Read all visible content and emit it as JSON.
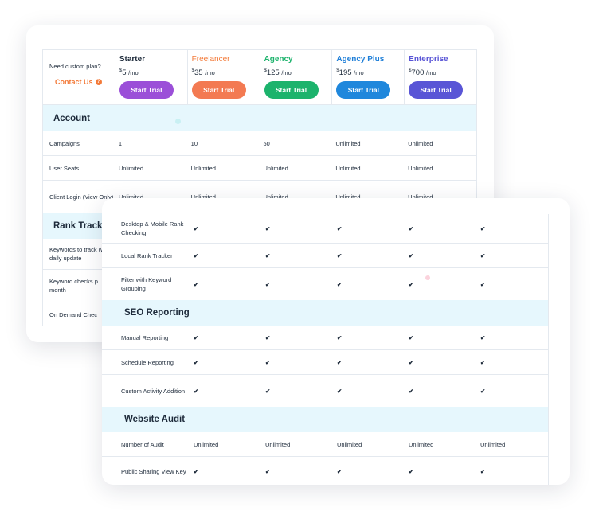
{
  "header": {
    "need_custom": "Need custom plan?",
    "contact": "Contact Us",
    "plans": [
      {
        "name": "Starter",
        "currency": "$",
        "price": "5",
        "period": "/mo",
        "button": "Start Trial",
        "name_color": "#1d2a3a",
        "button_color": "#9b4fd8"
      },
      {
        "name": "Freelancer",
        "currency": "$",
        "price": "35",
        "period": "/mo",
        "button": "Start Trial",
        "name_color": "#f37a39",
        "button_color": "#f37a52"
      },
      {
        "name": "Agency",
        "currency": "$",
        "price": "125",
        "period": "/mo",
        "button": "Start Trial",
        "name_color": "#1cb36c",
        "button_color": "#1cb36c"
      },
      {
        "name": "Agency Plus",
        "currency": "$",
        "price": "195",
        "period": "/mo",
        "button": "Start Trial",
        "name_color": "#1f7fd8",
        "button_color": "#1f87dc"
      },
      {
        "name": "Enterprise",
        "currency": "$",
        "price": "700",
        "period": "/mo",
        "button": "Start Trial",
        "name_color": "#5955d6",
        "button_color": "#5955d6"
      }
    ]
  },
  "back": {
    "account_title": "Account",
    "account_rows": [
      {
        "label": "Campaigns",
        "values": [
          "1",
          "10",
          "50",
          "Unlimited",
          "Unlimited"
        ]
      },
      {
        "label": "User Seats",
        "values": [
          "Unlimited",
          "Unlimited",
          "Unlimited",
          "Unlimited",
          "Unlimited"
        ]
      },
      {
        "label": "Client Login (View Only)",
        "values": [
          "Unlimited",
          "Unlimited",
          "Unlimited",
          "Unlimited",
          "Unlimited"
        ]
      }
    ],
    "rank_title": "Rank Track",
    "rank_rows": [
      {
        "label": "Keywords to track (with daily update"
      },
      {
        "label": "Keyword checks p month"
      },
      {
        "label": "On Demand Chec"
      }
    ]
  },
  "front": {
    "rows_top": [
      {
        "label": "Desktop & Mobile Rank Checking"
      },
      {
        "label": "Local Rank Tracker"
      },
      {
        "label": "Filter with Keyword Grouping"
      }
    ],
    "seo_title": "SEO Reporting",
    "seo_rows": [
      {
        "label": "Manual Reporting"
      },
      {
        "label": "Schedule Reporting"
      },
      {
        "label": "Custom Activity Addition"
      }
    ],
    "audit_title": "Website Audit",
    "audit_rows": [
      {
        "label": "Number of Audit",
        "values": [
          "Unlimited",
          "Unlimited",
          "Unlimited",
          "Unlimited",
          "Unlimited"
        ]
      },
      {
        "label": "Public Sharing View Key"
      }
    ],
    "check_glyph": "✔"
  }
}
